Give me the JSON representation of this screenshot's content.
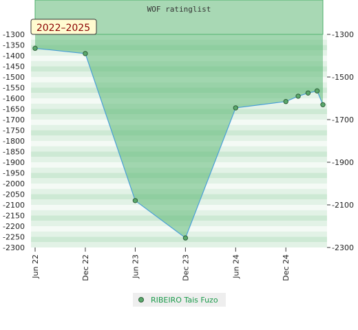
{
  "header": {
    "title": "WOF ratinglist",
    "badge": "2022–2025"
  },
  "legend": {
    "label": "RIBEIRO Tais Fuzo"
  },
  "colors": {
    "area_fill": "#5cb874",
    "line": "#4a9fd8",
    "marker": "#5aa86b",
    "header_bg": "#a8d8b4",
    "legend_text": "#1a9a4a"
  },
  "chart_data": {
    "type": "area",
    "title": "WOF ratinglist",
    "x": [
      "2022-06-01",
      "2022-12-01",
      "2023-06-01",
      "2023-12-01",
      "2024-06-01",
      "2024-12-01",
      "2025-01-15",
      "2025-02-20",
      "2025-03-25",
      "2025-04-15"
    ],
    "series": [
      {
        "name": "RIBEIRO Tais Fuzo",
        "values": [
          1365,
          1390,
          2080,
          2255,
          1645,
          1615,
          1590,
          1575,
          1565,
          1630
        ]
      }
    ],
    "xticks": [
      "Jun 22",
      "Dec 22",
      "Jun 23",
      "Dec 23",
      "Jun 24",
      "Dec 24"
    ],
    "yticks_left": [
      "-1300",
      "-1350",
      "-1400",
      "-1450",
      "-1500",
      "-1550",
      "-1600",
      "-1650",
      "-1700",
      "-1750",
      "-1800",
      "-1850",
      "-1900",
      "-1950",
      "-2000",
      "-2050",
      "-2100",
      "-2150",
      "-2200",
      "-2250",
      "-2300"
    ],
    "yticks_right": [
      "-1300",
      "-1500",
      "-1700",
      "-1900",
      "-2100",
      "-2300"
    ],
    "ylim": [
      1300,
      2300
    ],
    "y_inverted": true,
    "legend_position": "bottom-center"
  }
}
